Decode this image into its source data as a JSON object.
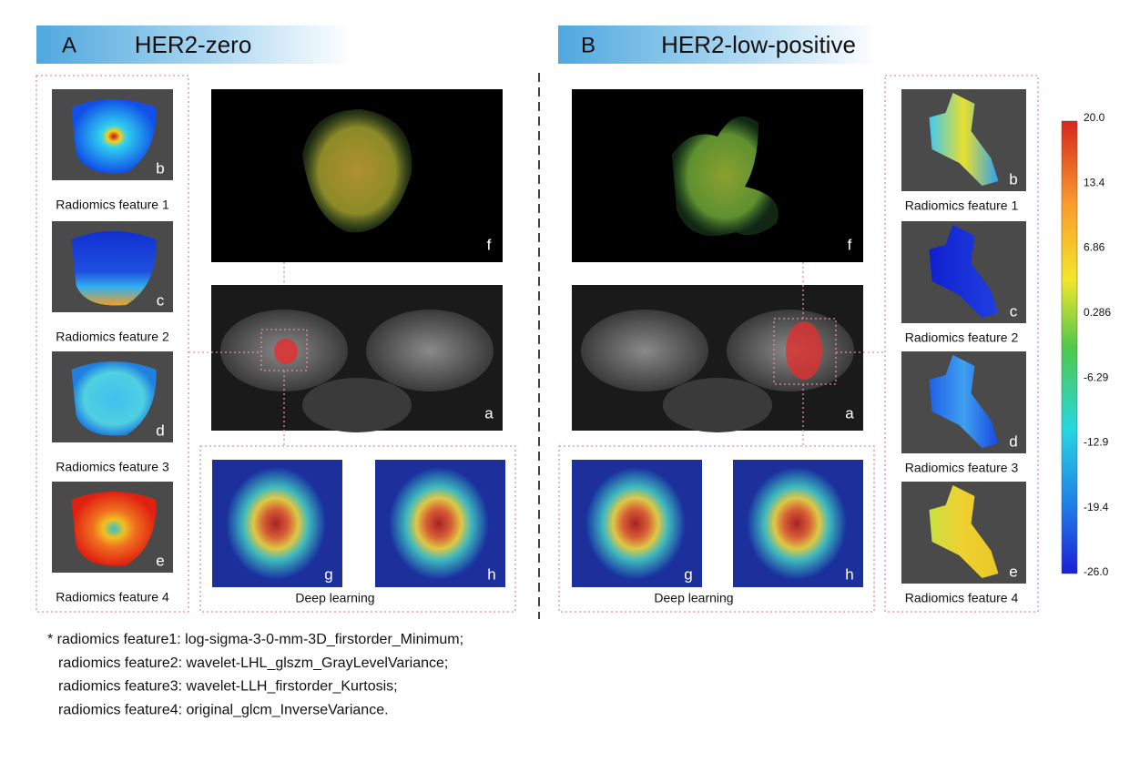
{
  "panels": [
    {
      "letter": "A",
      "title": "HER2-zero",
      "radiomics": [
        {
          "letter": "b",
          "label": "Radiomics feature 1"
        },
        {
          "letter": "c",
          "label": "Radiomics feature 2"
        },
        {
          "letter": "d",
          "label": "Radiomics feature 3"
        },
        {
          "letter": "e",
          "label": "Radiomics feature 4"
        }
      ],
      "image_letters": [
        "f",
        "a",
        "g",
        "h"
      ],
      "deep_learning": "Deep learning"
    },
    {
      "letter": "B",
      "title": "HER2-low-positive",
      "radiomics": [
        {
          "letter": "b",
          "label": "Radiomics feature 1"
        },
        {
          "letter": "c",
          "label": "Radiomics feature 2"
        },
        {
          "letter": "d",
          "label": "Radiomics feature 3"
        },
        {
          "letter": "e",
          "label": "Radiomics feature 4"
        }
      ],
      "image_letters": [
        "f",
        "a",
        "g",
        "h"
      ],
      "deep_learning": "Deep learning"
    }
  ],
  "colorbar": {
    "ticks": [
      "20.0",
      "13.4",
      "6.86",
      "0.286",
      "-6.29",
      "-12.9",
      "-19.4",
      "-26.0"
    ]
  },
  "footnote": [
    "* radiomics feature1: log-sigma-3-0-mm-3D_firstorder_Minimum;",
    "radiomics feature2: wavelet-LHL_glszm_GrayLevelVariance;",
    "radiomics feature3: wavelet-LLH_firstorder_Kurtosis;",
    "radiomics feature4: original_glcm_InverseVariance."
  ]
}
